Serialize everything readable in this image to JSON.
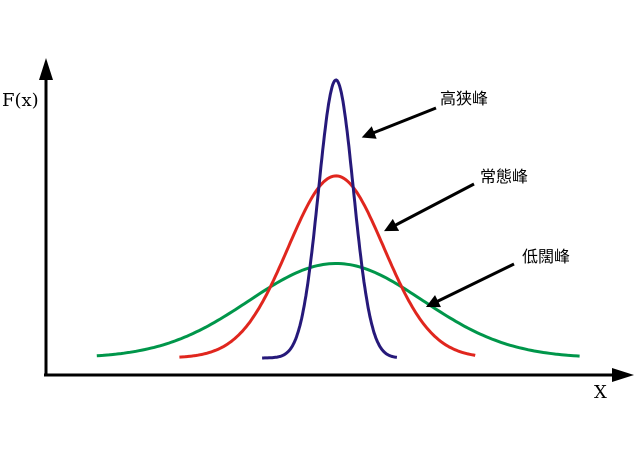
{
  "chart_data": {
    "type": "line",
    "title": "",
    "ylabel": "F(x)",
    "xlabel": "X",
    "xlim": [
      -3,
      3
    ],
    "ylim": [
      0,
      1.05
    ],
    "grid": false,
    "series": [
      {
        "color": "#00964a",
        "shape": "normal",
        "mean": 0,
        "sd": 1.0,
        "peak": 0.34,
        "range": [
          -2.75,
          2.8
        ]
      },
      {
        "color": "#e0261e",
        "shape": "normal",
        "mean": 0,
        "sd": 0.55,
        "peak": 0.655,
        "range": [
          -1.8,
          1.6
        ]
      },
      {
        "color": "#26197a",
        "shape": "normal",
        "mean": 0,
        "sd": 0.2,
        "peak": 1.0,
        "range": [
          -0.85,
          0.7
        ]
      }
    ],
    "annotations": [
      {
        "text": "高狭峰",
        "series_index": 2
      },
      {
        "text": "常態峰",
        "series_index": 1
      },
      {
        "text": "低闊峰",
        "series_index": 0
      }
    ]
  }
}
